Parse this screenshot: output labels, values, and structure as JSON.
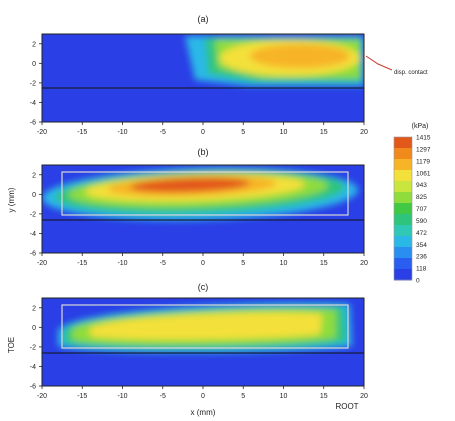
{
  "chart_data": [
    {
      "type": "heatmap",
      "panel_label": "(a)",
      "xlabel": "",
      "ylabel": "",
      "x_ticks": [
        "-20",
        "-15",
        "-10",
        "-5",
        "0",
        "5",
        "10",
        "15",
        "20"
      ],
      "y_ticks": [
        "2",
        "0",
        "-2",
        "-4",
        "-6"
      ],
      "xlim": [
        -20,
        20
      ],
      "ylim": [
        -6,
        3
      ],
      "annotation": "disp. contact",
      "hotspot": {
        "x_range": [
          0,
          20
        ],
        "y_range": [
          -2,
          3
        ],
        "peak_x": 10,
        "peak_y": 0.8,
        "peak_kpa": 1179
      },
      "outline_box": null
    },
    {
      "type": "heatmap",
      "panel_label": "(b)",
      "xlabel": "",
      "ylabel": "y (mm)",
      "x_ticks": [
        "-20",
        "-15",
        "-10",
        "-5",
        "0",
        "5",
        "10",
        "15",
        "20"
      ],
      "y_ticks": [
        "2",
        "0",
        "-2",
        "-4",
        "-6"
      ],
      "xlim": [
        -20,
        20
      ],
      "ylim": [
        -6,
        3
      ],
      "hotspot": {
        "x_range": [
          -18,
          18
        ],
        "y_range": [
          -2,
          2.5
        ],
        "peak_x": 0,
        "peak_y": 1.2,
        "peak_kpa": 1415
      },
      "outline_box": {
        "x": [
          -18,
          18
        ],
        "y": [
          -2.2,
          3
        ]
      }
    },
    {
      "type": "heatmap",
      "panel_label": "(c)",
      "xlabel": "x (mm)",
      "ylabel": "TOE",
      "x_ticks": [
        "-20",
        "-15",
        "-10",
        "-5",
        "0",
        "5",
        "10",
        "15",
        "20"
      ],
      "y_ticks": [
        "2",
        "0",
        "-2",
        "-4",
        "-6"
      ],
      "xlim": [
        -20,
        20
      ],
      "ylim": [
        -6,
        3
      ],
      "corner_label": "ROOT",
      "hotspot": {
        "x_range": [
          -18,
          18
        ],
        "y_range": [
          -2,
          2.5
        ],
        "peak_x": -2,
        "peak_y": 1,
        "peak_kpa": 1061
      },
      "outline_box": {
        "x": [
          -18,
          18
        ],
        "y": [
          -2.2,
          3
        ]
      }
    }
  ],
  "colorbar": {
    "title": "(kPa)",
    "ticks": [
      "1415",
      "1297",
      "1179",
      "1061",
      "943",
      "825",
      "707",
      "590",
      "472",
      "354",
      "236",
      "118",
      "0"
    ],
    "colors": [
      "#e2571a",
      "#f08a1c",
      "#f6b426",
      "#f4e03a",
      "#c8e63e",
      "#8fdc3c",
      "#41c845",
      "#2ec47c",
      "#2ec8b4",
      "#2ab8e6",
      "#2a8ef0",
      "#2a5ef0",
      "#2a3fe6"
    ],
    "background_color": "#2a3fe6"
  }
}
